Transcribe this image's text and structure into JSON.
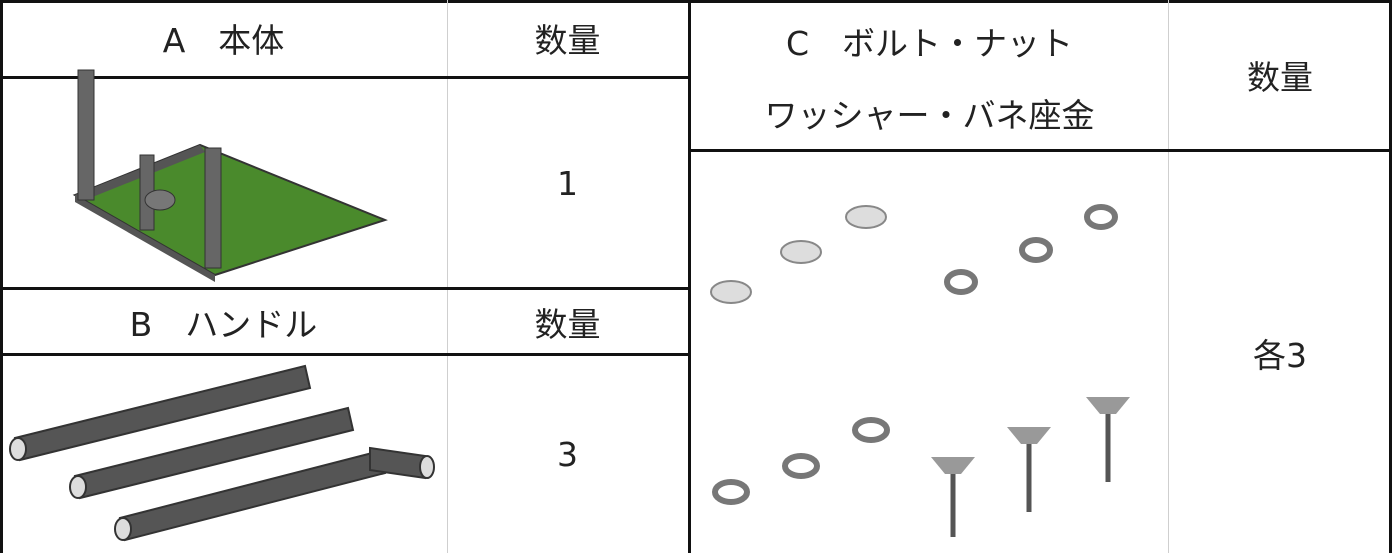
{
  "left": {
    "sections": [
      {
        "title": "A　本体",
        "qty_header": "数量",
        "quantity": 1
      },
      {
        "title": "B　ハンドル",
        "qty_header": "数量",
        "quantity": 3
      }
    ]
  },
  "right": {
    "title_lines": [
      "C　ボルト・ナット",
      "ワッシャー・バネ座金"
    ],
    "qty_header": "数量",
    "quantity": "各3"
  }
}
